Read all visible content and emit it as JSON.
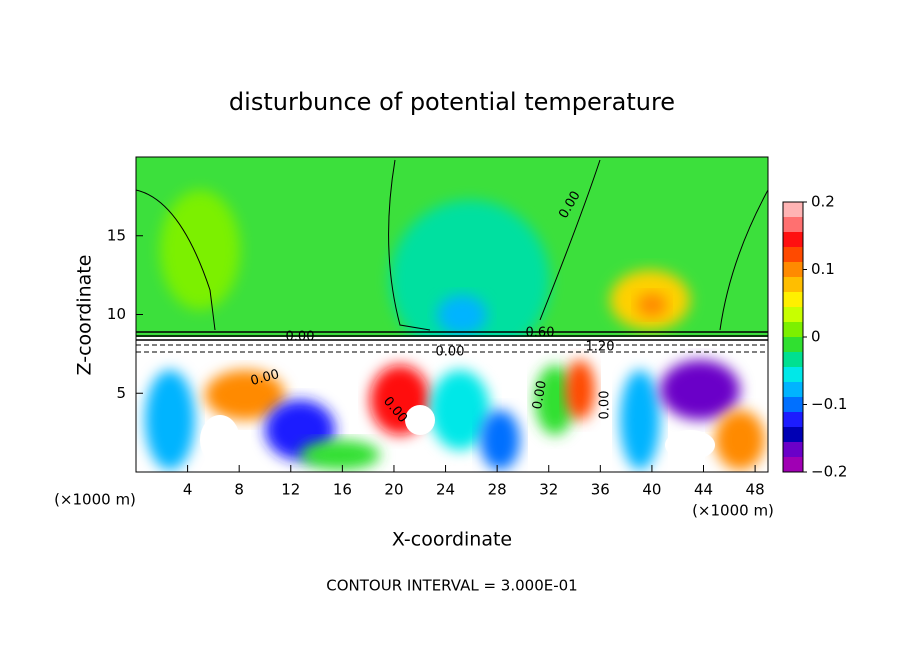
{
  "chart_data": {
    "type": "contour",
    "title": "disturbunce of potential temperature",
    "xlabel": "X-coordinate",
    "ylabel": "Z-coordinate",
    "x_unit": "(×1000 m)",
    "footnote": "CONTOUR INTERVAL = 3.000E-01",
    "xlim": [
      0,
      49
    ],
    "xticks": [
      4,
      8,
      12,
      16,
      20,
      24,
      28,
      32,
      36,
      40,
      44,
      48
    ],
    "ylim": [
      0,
      20
    ],
    "yticks": [
      5,
      10,
      15
    ],
    "colorbar_lim": [
      -0.2,
      0.2
    ],
    "colorbar_ticks": [
      {
        "value": 0.2,
        "label": "0.2"
      },
      {
        "value": 0.1,
        "label": "0.1"
      },
      0,
      {
        "value": -0.1,
        "label": "−0.1"
      },
      {
        "value": -0.2,
        "label": "−0.2"
      }
    ],
    "colormap": [
      "#ffb4b4",
      "#ff7070",
      "#ff1010",
      "#ff4a00",
      "#ff8a00",
      "#ffbe00",
      "#fff000",
      "#c8ff00",
      "#7cf000",
      "#30e030",
      "#00e090",
      "#00e8e8",
      "#00b4ff",
      "#0070ff",
      "#1c1cff",
      "#0000b4",
      "#6a00c8",
      "#a000b4"
    ],
    "contour_labels": [
      "0.00",
      "0.00",
      "0.60",
      "0.00",
      "0.00",
      "1.20",
      "0.00",
      "0.00",
      "0.00"
    ]
  }
}
